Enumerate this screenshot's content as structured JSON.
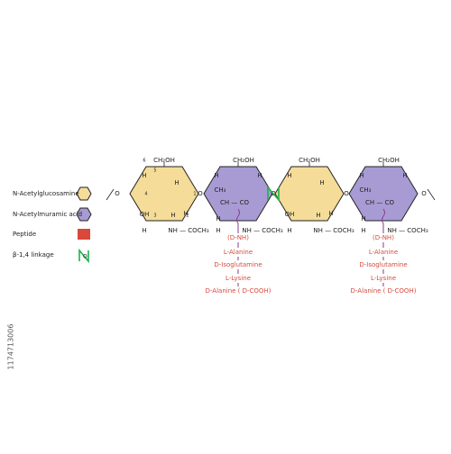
{
  "legend": [
    {
      "label": "N-Acetylglucosamine"
    },
    {
      "label": "N-Acetylmuramic acid"
    },
    {
      "label": "Peptide"
    },
    {
      "label": "β-1,4 linkage"
    }
  ],
  "sugars": [
    {
      "kind": "NAG",
      "labels": [
        "CH₂OH",
        "H",
        "H",
        "OH",
        "H",
        "H",
        "NH — COCH₃",
        "H"
      ],
      "numbering": [
        "6",
        "5",
        "4",
        "3",
        "2",
        "1"
      ]
    },
    {
      "kind": "NAM",
      "labels": [
        "CH₂OH",
        "H",
        "H",
        "CH₃",
        "CH — CO",
        "H",
        "H",
        "NH — COCH₃"
      ]
    },
    {
      "kind": "NAG",
      "labels": [
        "CH₂OH",
        "H",
        "H",
        "OH",
        "H",
        "H",
        "NH — COCH₃",
        "H"
      ]
    },
    {
      "kind": "NAM",
      "labels": [
        "CH₂OH",
        "H",
        "H",
        "CH₃",
        "CH — CO",
        "H",
        "H",
        "NH — COCH₃"
      ]
    }
  ],
  "linkage_atoms": [
    "O",
    "O",
    "O",
    "O",
    "O"
  ],
  "peptides": [
    {
      "residues": [
        "(D-NH)",
        "L-Alanine",
        "D-Isoglutamine",
        "L-Lysine",
        "D-Alanine ( D-COOH)"
      ]
    },
    {
      "residues": [
        "(D-NH)",
        "L-Alanine",
        "D-Isoglutamine",
        "L-Lysine",
        "D-Alanine ( D-COOH)"
      ]
    }
  ],
  "stock_id": "1174713006"
}
